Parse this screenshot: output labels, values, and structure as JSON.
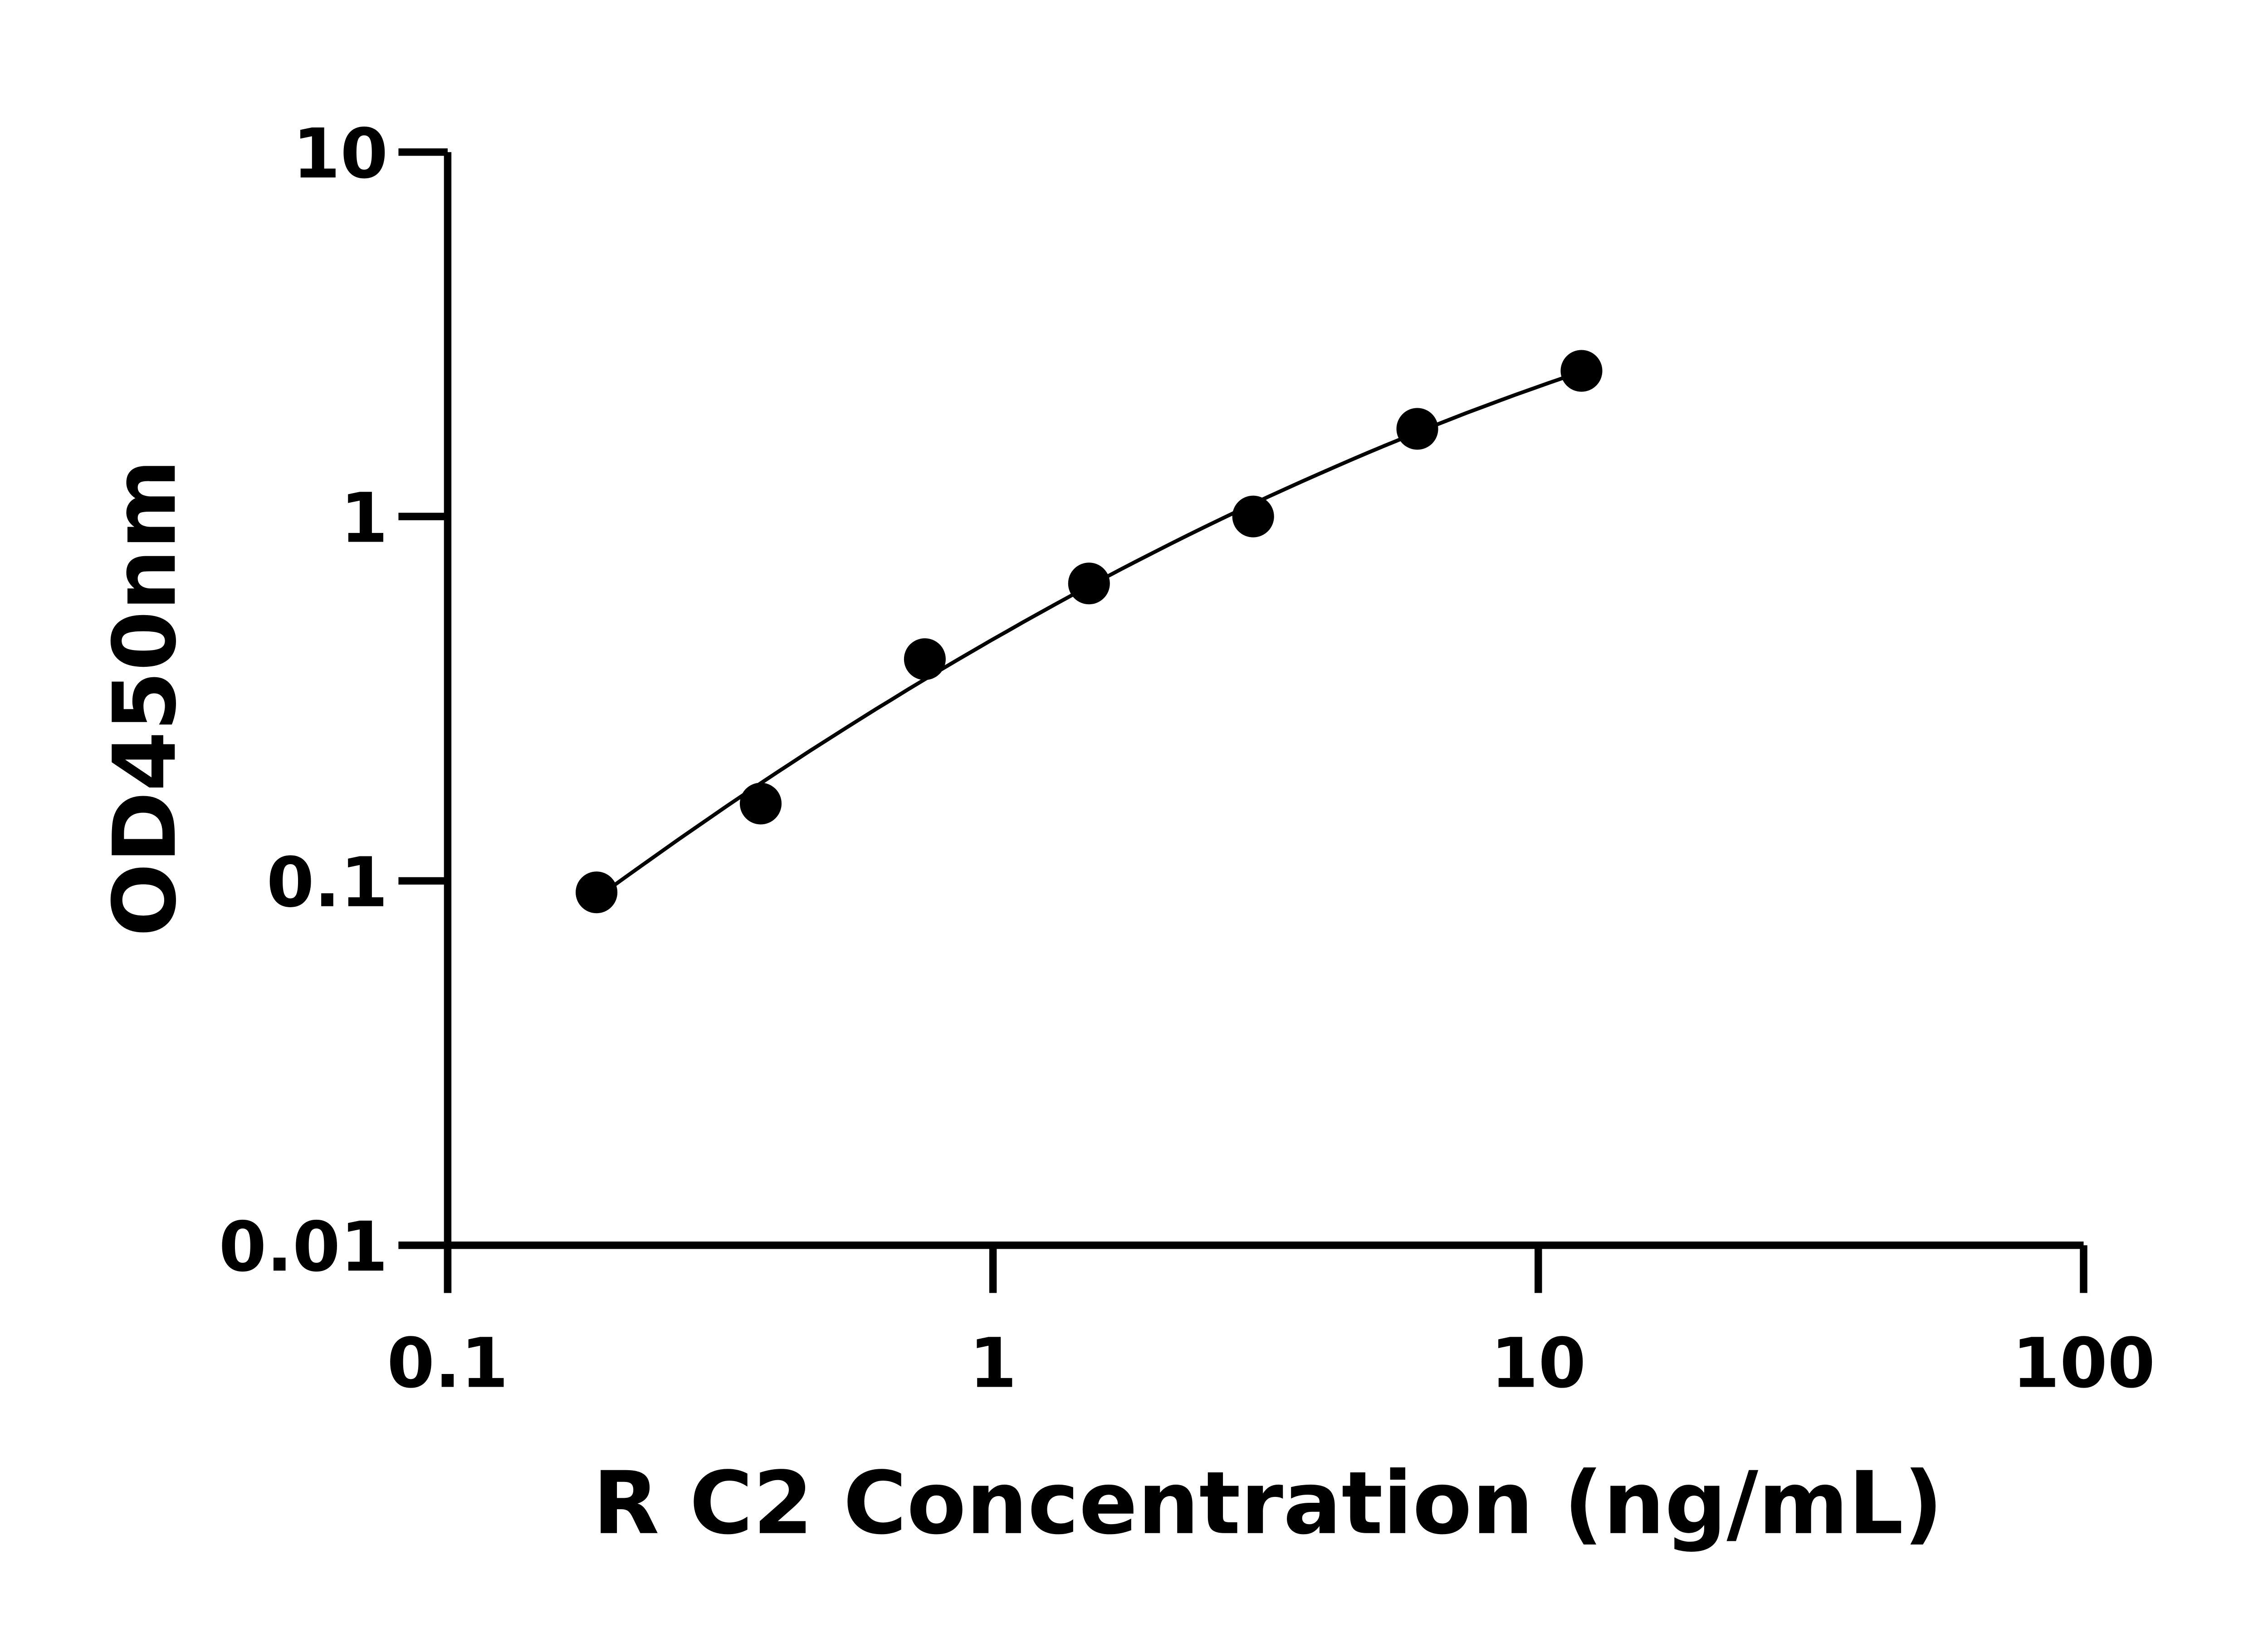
{
  "chart_data": {
    "type": "scatter",
    "title": "",
    "xlabel": "R C2 Concentration (ng/mL)",
    "ylabel": "OD450nm",
    "x_scale": "log",
    "y_scale": "log",
    "xlim": [
      0.1,
      100
    ],
    "ylim": [
      0.01,
      10
    ],
    "x_ticks": [
      "0.1",
      "1",
      "10",
      "100"
    ],
    "y_ticks": [
      "0.01",
      "0.1",
      "1",
      "10"
    ],
    "grid": false,
    "legend": "none",
    "fit_curve": true,
    "marker_color": "#000000",
    "x": [
      0.1875,
      0.375,
      0.75,
      1.5,
      3,
      6,
      12
    ],
    "y": [
      0.093,
      0.163,
      0.406,
      0.655,
      1.0,
      1.74,
      2.51
    ]
  }
}
